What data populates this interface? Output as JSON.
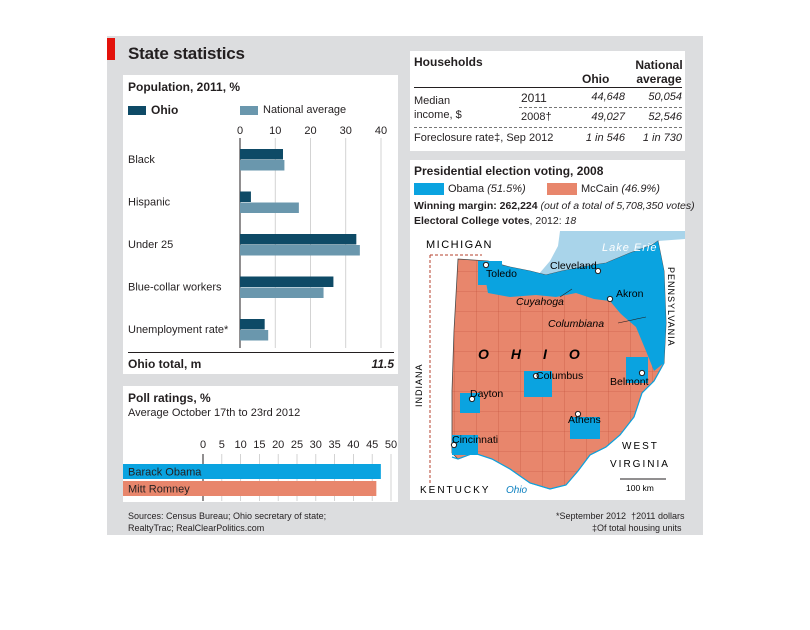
{
  "title": "State statistics",
  "colors": {
    "ohio": "#0e4a66",
    "national": "#6a97ad",
    "obama": "#0aa3e0",
    "mccain": "#e8866c",
    "brand_red": "#e3120b",
    "frame": "#dcdddf"
  },
  "population": {
    "heading": "Population, 2011, %",
    "total_label": "Ohio total, m",
    "total_value": "11.5"
  },
  "poll": {
    "heading": "Poll ratings, %",
    "subheading": "Average October 17th to 23rd 2012"
  },
  "households": {
    "heading": "Households",
    "col_ohio": "Ohio",
    "col_national_1": "National",
    "col_national_2": "average",
    "row_label_1": "Median",
    "row_label_2": "income, $",
    "year_2011": "2011",
    "year_2008": "2008†",
    "ohio_2011": "44,648",
    "nat_2011": "50,054",
    "ohio_2008": "49,027",
    "nat_2008": "52,546",
    "foreclosure_label": "Foreclosure rate‡, Sep 2012",
    "foreclosure_ohio": "1 in 546",
    "foreclosure_nat": "1 in 730"
  },
  "election": {
    "heading": "Presidential election voting, 2008",
    "obama_label": "Obama",
    "obama_pct": "(51.5%)",
    "mccain_label": "McCain",
    "mccain_pct": "(46.9%)",
    "margin_label": "Winning margin: 262,224",
    "margin_note": "(out of a total of 5,708,350 votes)",
    "ec_label": "Electoral College votes",
    "ec_year": ", 2012:",
    "ec_value": "18"
  },
  "map": {
    "michigan": "MICHIGAN",
    "lake": "Lake Erie",
    "pennsylvania": "PENNSYLVANIA",
    "indiana": "INDIANA",
    "ohio": "OHIO",
    "west_virginia_1": "WEST",
    "west_virginia_2": "VIRGINIA",
    "kentucky": "KENTUCKY",
    "river": "Ohio",
    "scale": "100 km",
    "cities": {
      "toledo": "Toledo",
      "cleveland": "Cleveland",
      "akron": "Akron",
      "dayton": "Dayton",
      "columbus": "Columbus",
      "belmont": "Belmont",
      "athens": "Athens",
      "cincinnati": "Cincinnati"
    },
    "counties": {
      "cuyahoga": "Cuyahoga",
      "columbiana": "Columbiana"
    }
  },
  "sources": {
    "line1": "Sources: Census Bureau; Ohio secretary of state;",
    "line2": "RealtyTrac; RealClearPolitics.com"
  },
  "footnotes": {
    "star": "*September 2012",
    "dagger": "†2011 dollars",
    "ddagger": "‡Of total housing units"
  },
  "chart_data": [
    {
      "type": "bar",
      "orientation": "horizontal",
      "title": "Population, 2011, %",
      "categories": [
        "Black",
        "Hispanic",
        "Under 25",
        "Blue-collar workers",
        "Unemployment rate*"
      ],
      "series": [
        {
          "name": "Ohio",
          "values": [
            12.2,
            3.1,
            33.0,
            26.5,
            7.0
          ]
        },
        {
          "name": "National average",
          "values": [
            12.6,
            16.7,
            34.0,
            23.7,
            8.0
          ]
        }
      ],
      "xlim": [
        0,
        40
      ],
      "ticks": [
        0,
        10,
        20,
        30,
        40
      ]
    },
    {
      "type": "bar",
      "orientation": "horizontal",
      "title": "Poll ratings, %",
      "categories": [
        "Barack Obama",
        "Mitt Romney"
      ],
      "values": [
        47.3,
        46.1
      ],
      "xlim": [
        0,
        50
      ],
      "ticks": [
        0,
        5,
        10,
        15,
        20,
        25,
        30,
        35,
        40,
        45,
        50
      ]
    }
  ]
}
